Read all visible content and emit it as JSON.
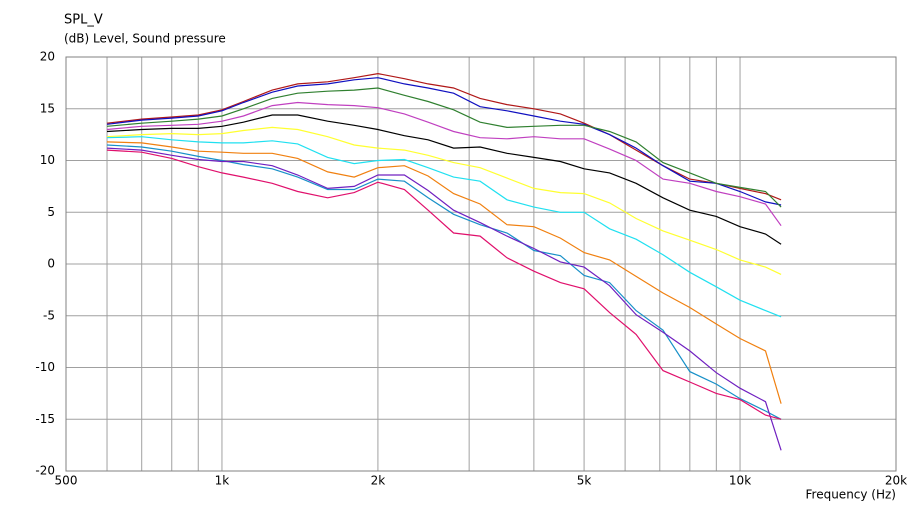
{
  "chart_data": {
    "type": "line",
    "title": "SPL_V",
    "ylabel": "(dB)  Level, Sound pressure",
    "xlabel": "Frequency  (Hz)",
    "xscale": "log",
    "grid": true,
    "xlim": [
      500,
      20000
    ],
    "xticks": [
      {
        "value": 500,
        "label": "500"
      },
      {
        "value": 1000,
        "label": "1k"
      },
      {
        "value": 2000,
        "label": "2k"
      },
      {
        "value": 5000,
        "label": "5k"
      },
      {
        "value": 10000,
        "label": "10k"
      },
      {
        "value": 20000,
        "label": "20k"
      }
    ],
    "x_grid_lines": [
      600,
      700,
      800,
      900,
      1000,
      2000,
      3000,
      4000,
      5000,
      6000,
      7000,
      8000,
      9000,
      10000
    ],
    "ylim": [
      -20,
      20
    ],
    "yticks": [
      -20,
      -15,
      -10,
      -5,
      0,
      5,
      10,
      15,
      20
    ],
    "x": [
      600,
      700,
      800,
      900,
      1000,
      1100,
      1250,
      1400,
      1600,
      1800,
      2000,
      2250,
      2500,
      2800,
      3150,
      3550,
      4000,
      4500,
      5000,
      5600,
      6300,
      7100,
      8000,
      9000,
      10000,
      11200,
      12000
    ],
    "series": [
      {
        "color": "#b01818",
        "values": [
          13.6,
          14,
          14.2,
          14.4,
          14.9,
          15.7,
          16.8,
          17.4,
          17.6,
          18,
          18.4,
          17.9,
          17.4,
          17,
          16,
          15.4,
          15,
          14.5,
          13.6,
          12.5,
          11,
          9.5,
          8.2,
          7.8,
          7.3,
          6.8,
          6.2
        ]
      },
      {
        "color": "#1010c0",
        "values": [
          13.5,
          13.9,
          14.1,
          14.3,
          14.8,
          15.6,
          16.6,
          17.2,
          17.4,
          17.8,
          18,
          17.4,
          17,
          16.5,
          15.2,
          14.8,
          14.3,
          13.8,
          13.5,
          12.5,
          11.2,
          9.5,
          8,
          7.8,
          7,
          6,
          5.7
        ]
      },
      {
        "color": "#308030",
        "values": [
          13.3,
          13.6,
          13.8,
          14,
          14.3,
          15,
          16,
          16.5,
          16.7,
          16.8,
          17,
          16.3,
          15.7,
          14.9,
          13.7,
          13.2,
          13.3,
          13.4,
          13.4,
          12.8,
          11.8,
          9.8,
          8.8,
          7.8,
          7.4,
          7,
          5.5
        ]
      },
      {
        "color": "#c040c0",
        "values": [
          13,
          13.3,
          13.4,
          13.5,
          13.8,
          14.3,
          15.3,
          15.6,
          15.4,
          15.3,
          15.1,
          14.5,
          13.7,
          12.8,
          12.2,
          12.1,
          12.3,
          12.1,
          12.1,
          11.1,
          10,
          8.2,
          7.8,
          7,
          6.5,
          5.8,
          3.7
        ]
      },
      {
        "color": "#000000",
        "values": [
          12.8,
          13,
          13.1,
          13.1,
          13.3,
          13.7,
          14.4,
          14.4,
          13.8,
          13.4,
          13,
          12.4,
          12,
          11.2,
          11.3,
          10.7,
          10.3,
          9.9,
          9.2,
          8.8,
          7.8,
          6.4,
          5.2,
          4.6,
          3.6,
          2.9,
          1.9
        ]
      },
      {
        "color": "#ffff30",
        "values": [
          12.3,
          12.5,
          12.6,
          12.5,
          12.6,
          12.9,
          13.2,
          13,
          12.3,
          11.5,
          11.2,
          11,
          10.5,
          9.8,
          9.3,
          8.3,
          7.3,
          6.9,
          6.8,
          5.9,
          4.4,
          3.2,
          2.3,
          1.4,
          0.4,
          -0.3,
          -1
        ]
      },
      {
        "color": "#20e0f0",
        "values": [
          12.2,
          12.3,
          12,
          11.8,
          11.7,
          11.7,
          11.9,
          11.6,
          10.3,
          9.7,
          10,
          10.1,
          9.3,
          8.4,
          8,
          6.2,
          5.5,
          5,
          5,
          3.4,
          2.4,
          0.9,
          -0.8,
          -2.2,
          -3.5,
          -4.5,
          -5.1
        ]
      },
      {
        "color": "#f08010",
        "values": [
          11.8,
          11.7,
          11.3,
          10.9,
          10.8,
          10.7,
          10.7,
          10.2,
          8.9,
          8.4,
          9.3,
          9.5,
          8.5,
          6.8,
          5.8,
          3.8,
          3.6,
          2.5,
          1.1,
          0.4,
          -1.2,
          -2.8,
          -4.2,
          -5.8,
          -7.2,
          -8.4,
          -13.5
        ]
      },
      {
        "color": "#1890c8",
        "values": [
          11.5,
          11.3,
          10.9,
          10.4,
          10,
          9.6,
          9.2,
          8.4,
          7.2,
          7.2,
          8.2,
          8,
          6.4,
          4.8,
          3.8,
          3,
          1.3,
          0.8,
          -1.1,
          -1.8,
          -4.5,
          -6.4,
          -10.4,
          -11.6,
          -13,
          -14.2,
          -15
        ]
      },
      {
        "color": "#7020c0",
        "values": [
          11.2,
          11,
          10.5,
          10.1,
          9.9,
          9.9,
          9.5,
          8.6,
          7.3,
          7.5,
          8.6,
          8.6,
          7.1,
          5.2,
          4,
          2.7,
          1.5,
          0.2,
          -0.3,
          -2.1,
          -4.9,
          -6.6,
          -8.4,
          -10.5,
          -12,
          -13.3,
          -18
        ]
      },
      {
        "color": "#e0106c",
        "values": [
          11,
          10.8,
          10.2,
          9.4,
          8.8,
          8.4,
          7.8,
          7,
          6.4,
          6.9,
          7.9,
          7.2,
          5.2,
          3,
          2.7,
          0.6,
          -0.7,
          -1.8,
          -2.4,
          -4.7,
          -6.8,
          -10.3,
          -11.4,
          -12.5,
          -13.1,
          -14.6,
          -15
        ]
      }
    ]
  }
}
